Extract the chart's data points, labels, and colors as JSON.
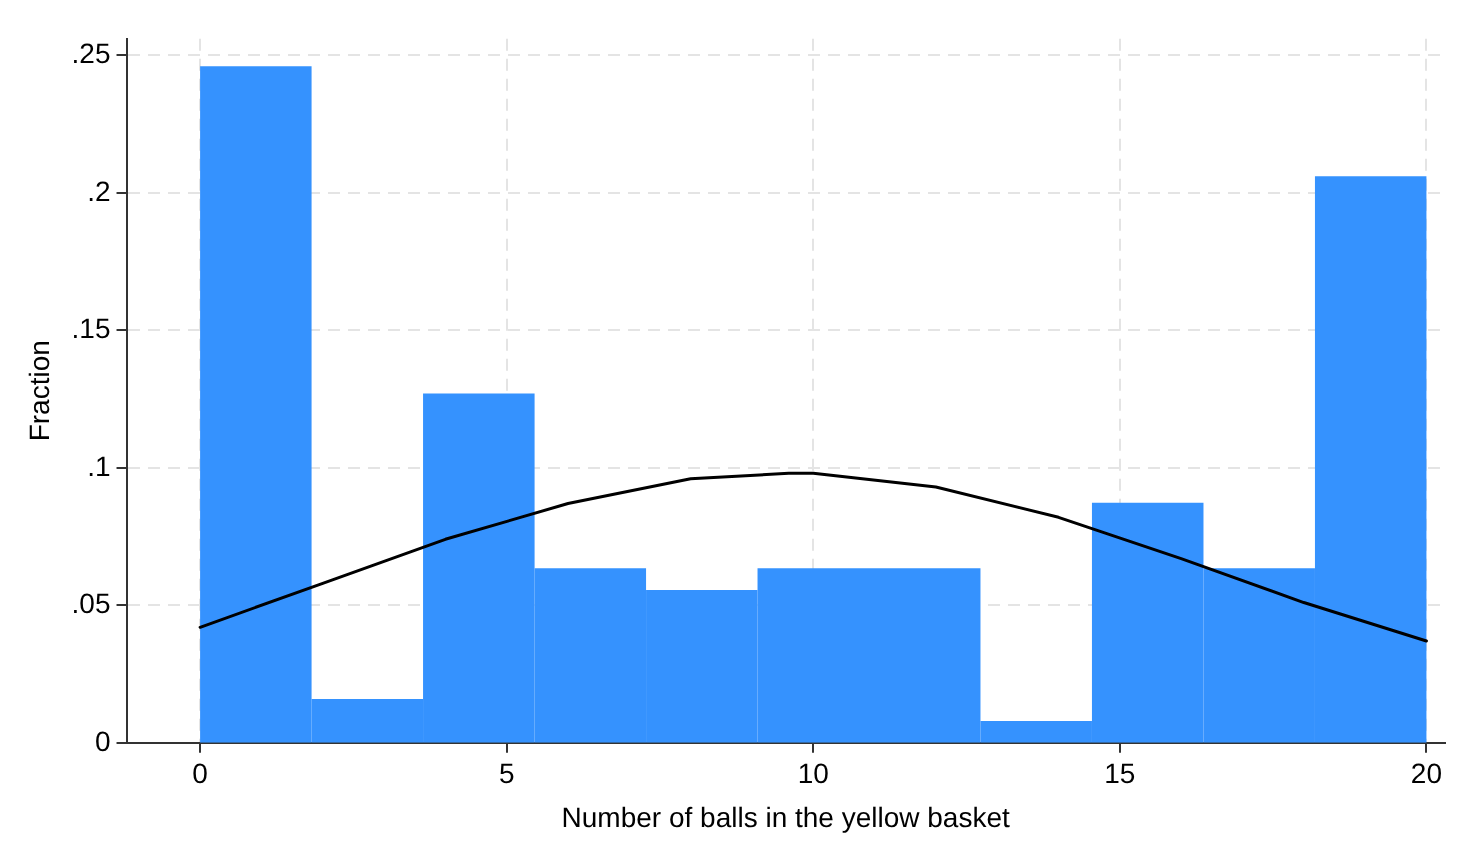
{
  "chart_data": {
    "type": "histogram",
    "xlabel": "Number of balls in the yellow basket",
    "ylabel": "Fraction",
    "bins": [
      0,
      1.818,
      3.636,
      5.455,
      7.273,
      9.091,
      10.909,
      12.727,
      14.545,
      16.364,
      18.182,
      20
    ],
    "values": [
      0.246,
      0.0159,
      0.127,
      0.0635,
      0.0556,
      0.0635,
      0.0635,
      0.0079,
      0.0873,
      0.0635,
      0.206
    ],
    "color": "#3592fe",
    "series": [
      {
        "type": "line",
        "color": "#000000",
        "x": [
          0,
          2,
          4,
          6,
          8,
          9.6,
          10,
          12,
          14,
          16,
          18,
          20
        ],
        "values": [
          0.042,
          0.058,
          0.074,
          0.087,
          0.096,
          0.098,
          0.098,
          0.093,
          0.082,
          0.067,
          0.051,
          0.037
        ]
      }
    ],
    "xlim": [
      -1.2,
      20.3
    ],
    "xticks": [
      0,
      5,
      10,
      15,
      20
    ],
    "ylim": [
      0,
      0.256
    ],
    "yticks": [
      {
        "value": 0,
        "label": "0"
      },
      {
        "value": 0.05,
        "label": ".05"
      },
      {
        "value": 0.1,
        "label": ".1"
      },
      {
        "value": 0.15,
        "label": ".15"
      },
      {
        "value": 0.2,
        "label": ".2"
      },
      {
        "value": 0.25,
        "label": ".25"
      }
    ],
    "grid": true,
    "legend": false,
    "marker": "none",
    "line_style": "solid"
  }
}
